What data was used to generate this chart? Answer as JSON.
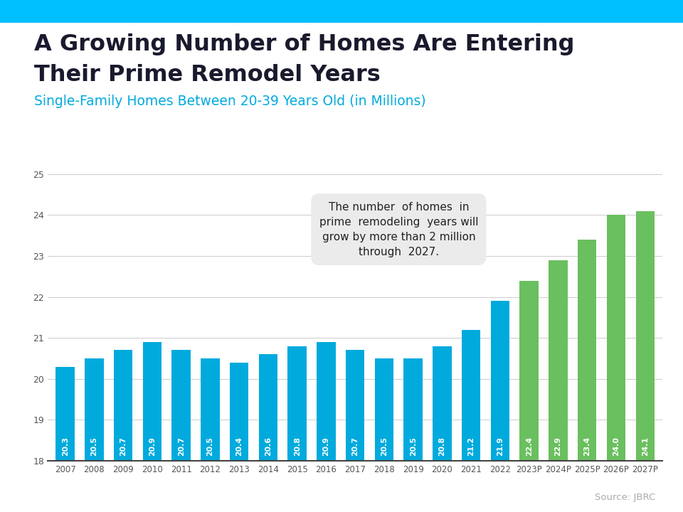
{
  "title_line1": "A Growing Number of Homes Are Entering",
  "title_line2": "Their Prime Remodel Years",
  "subtitle": "Single-Family Homes Between 20-39 Years Old (in Millions)",
  "source": "Source: JBRC",
  "categories": [
    "2007",
    "2008",
    "2009",
    "2010",
    "2011",
    "2012",
    "2013",
    "2014",
    "2015",
    "2016",
    "2017",
    "2018",
    "2019",
    "2020",
    "2021",
    "2022",
    "2023P",
    "2024P",
    "2025P",
    "2026P",
    "2027P"
  ],
  "values": [
    20.3,
    20.5,
    20.7,
    20.9,
    20.7,
    20.5,
    20.4,
    20.6,
    20.8,
    20.9,
    20.7,
    20.5,
    20.5,
    20.8,
    21.2,
    21.9,
    22.4,
    22.9,
    23.4,
    24.0,
    24.1
  ],
  "bar_colors": [
    "#00aadd",
    "#00aadd",
    "#00aadd",
    "#00aadd",
    "#00aadd",
    "#00aadd",
    "#00aadd",
    "#00aadd",
    "#00aadd",
    "#00aadd",
    "#00aadd",
    "#00aadd",
    "#00aadd",
    "#00aadd",
    "#00aadd",
    "#00aadd",
    "#6abf5e",
    "#6abf5e",
    "#6abf5e",
    "#6abf5e",
    "#6abf5e"
  ],
  "ylim": [
    18,
    25
  ],
  "yticks": [
    18,
    19,
    20,
    21,
    22,
    23,
    24,
    25
  ],
  "blue_color": "#00aadd",
  "green_color": "#6abf5e",
  "title_color": "#1a1a2e",
  "subtitle_color": "#00aadd",
  "top_accent_color": "#00bfff",
  "annotation_text": "The number  of homes  in\nprime  remodeling  years will\ngrow by more than 2 million\nthrough  2027.",
  "source_color": "#aaaaaa",
  "background_color": "#ffffff",
  "grid_color": "#cccccc",
  "axis_color": "#555555"
}
